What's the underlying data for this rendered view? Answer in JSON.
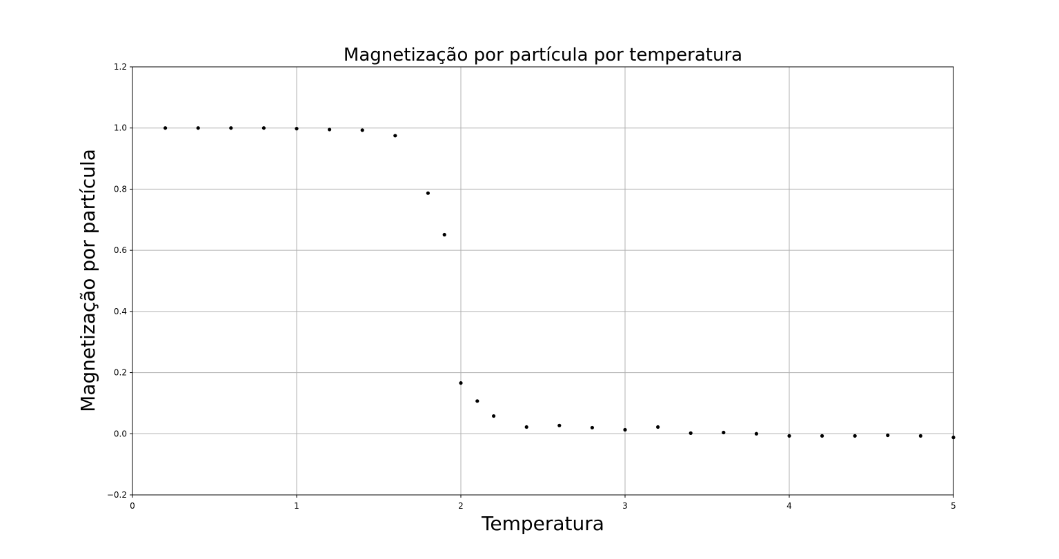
{
  "chart_data": {
    "type": "scatter",
    "title": "Magnetização por partícula por temperatura",
    "xlabel": "Temperatura",
    "ylabel": "Magnetização por partícula",
    "xlim": [
      0,
      5
    ],
    "ylim": [
      -0.2,
      1.2
    ],
    "xticks": [
      0,
      1,
      2,
      3,
      4,
      5
    ],
    "xtick_labels": [
      "0",
      "1",
      "2",
      "3",
      "4",
      "5"
    ],
    "yticks": [
      -0.2,
      0.0,
      0.2,
      0.4,
      0.6,
      0.8,
      1.0,
      1.2
    ],
    "ytick_labels": [
      "−0.2",
      "0.0",
      "0.2",
      "0.4",
      "0.6",
      "0.8",
      "1.0",
      "1.2"
    ],
    "grid": true,
    "marker_color": "#000000",
    "grid_color": "#b0b0b0",
    "series": [
      {
        "x": [
          0.2,
          0.4,
          0.6,
          0.8,
          1.0,
          1.2,
          1.4,
          1.6,
          1.8,
          1.9,
          2.0,
          2.1,
          2.2,
          2.4,
          2.6,
          2.8,
          3.0,
          3.2,
          3.4,
          3.6,
          3.8,
          4.0,
          4.2,
          4.4,
          4.6,
          4.8,
          5.0
        ],
        "y": [
          1.0,
          1.0,
          1.0,
          1.0,
          0.998,
          0.995,
          0.993,
          0.975,
          0.787,
          0.651,
          0.166,
          0.107,
          0.058,
          0.022,
          0.027,
          0.02,
          0.013,
          0.022,
          0.002,
          0.004,
          0.0,
          -0.007,
          -0.007,
          -0.007,
          -0.005,
          -0.007,
          -0.012
        ]
      }
    ]
  }
}
